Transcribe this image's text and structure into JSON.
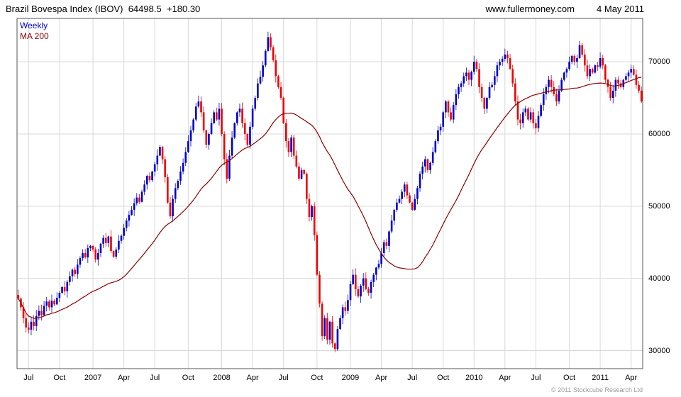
{
  "header": {
    "index_name": "Brazil Bovespa Index (IBOV)",
    "last_price": "64498.5",
    "change": "+180.30",
    "website": "www.fullermoney.com",
    "date": "4 May 2011"
  },
  "legend": {
    "series1": "Weekly",
    "series2": "MA 200"
  },
  "footer": {
    "copyright": "© 2011 Stockcube Research Ltd"
  },
  "colors": {
    "up_candle": "#0000cc",
    "down_candle": "#ee0000",
    "ma_line": "#8b0000",
    "grid": "#d8d8d8",
    "border": "#555555",
    "legend_weekly": "#0000cc",
    "legend_ma": "#8b0000"
  },
  "chart_data": {
    "type": "candlestick",
    "timeframe": "weekly",
    "title": "Brazil Bovespa Index (IBOV)",
    "xlabel": "",
    "ylabel": "",
    "grid": true,
    "legend_position": "top-left",
    "ylim": [
      27500,
      76000
    ],
    "yticks": [
      30000,
      40000,
      50000,
      60000,
      70000
    ],
    "xticks": [
      {
        "label": "Jul",
        "week": 4
      },
      {
        "label": "Oct",
        "week": 16
      },
      {
        "label": "2007",
        "week": 29
      },
      {
        "label": "Apr",
        "week": 41
      },
      {
        "label": "Jul",
        "week": 53
      },
      {
        "label": "Oct",
        "week": 66
      },
      {
        "label": "2008",
        "week": 79
      },
      {
        "label": "Apr",
        "week": 91
      },
      {
        "label": "Jul",
        "week": 103
      },
      {
        "label": "Oct",
        "week": 116
      },
      {
        "label": "2009",
        "week": 129
      },
      {
        "label": "Apr",
        "week": 141
      },
      {
        "label": "Jul",
        "week": 153
      },
      {
        "label": "Oct",
        "week": 165
      },
      {
        "label": "2010",
        "week": 177
      },
      {
        "label": "Apr",
        "week": 189
      },
      {
        "label": "Jul",
        "week": 201
      },
      {
        "label": "Oct",
        "week": 214
      },
      {
        "label": "2011",
        "week": 226
      },
      {
        "label": "Apr",
        "week": 238
      }
    ],
    "ma_period_label": "MA 200",
    "ma_window_weeks": 40,
    "start": "Jun 2006",
    "end": "May 2011",
    "weekly_closes": [
      37200,
      36000,
      34500,
      33200,
      32900,
      34000,
      33400,
      34800,
      35500,
      34900,
      36200,
      36800,
      36000,
      36900,
      36400,
      37300,
      38000,
      38800,
      38200,
      39500,
      40300,
      41200,
      40600,
      41900,
      42800,
      43500,
      42900,
      44200,
      44500,
      44000,
      42600,
      43500,
      44800,
      45600,
      44900,
      45800,
      43800,
      43000,
      44000,
      45200,
      45900,
      47000,
      48000,
      48800,
      49500,
      50400,
      51200,
      50600,
      52000,
      53000,
      54200,
      53600,
      54800,
      55800,
      57000,
      58200,
      56500,
      54000,
      50500,
      48600,
      51000,
      52500,
      53500,
      54800,
      56000,
      57500,
      59000,
      60500,
      62000,
      63800,
      64500,
      63000,
      60500,
      58500,
      60000,
      61500,
      63000,
      62000,
      63500,
      60000,
      56500,
      53800,
      57000,
      59500,
      61500,
      63000,
      63500,
      61500,
      60000,
      58500,
      61000,
      63500,
      65000,
      67000,
      67900,
      69500,
      71500,
      73400,
      72000,
      70200,
      68000,
      66500,
      65000,
      61500,
      59000,
      57500,
      59500,
      57000,
      55500,
      53800,
      55000,
      54500,
      51000,
      48500,
      50000,
      46000,
      40500,
      36500,
      32000,
      34500,
      31500,
      34000,
      31000,
      30200,
      33000,
      34500,
      36000,
      35500,
      37000,
      39200,
      40500,
      38500,
      37500,
      39000,
      40000,
      38500,
      38000,
      39500,
      40500,
      41500,
      42000,
      43500,
      45000,
      44500,
      46500,
      48000,
      49500,
      50500,
      51000,
      52000,
      53000,
      51500,
      50500,
      49500,
      51000,
      52500,
      54500,
      55500,
      56500,
      55000,
      56000,
      57500,
      59000,
      60500,
      61000,
      63000,
      64500,
      63000,
      62000,
      64000,
      65500,
      66500,
      67000,
      68000,
      68500,
      67500,
      68600,
      70000,
      69000,
      66500,
      65000,
      63500,
      65000,
      66500,
      66800,
      68000,
      69500,
      70000,
      70400,
      71000,
      70500,
      69000,
      67000,
      64500,
      62000,
      61500,
      63000,
      63500,
      62000,
      63000,
      61500,
      60800,
      62500,
      64000,
      65500,
      66500,
      67500,
      66500,
      65500,
      64500,
      66000,
      67500,
      68500,
      69000,
      70000,
      70800,
      70000,
      70500,
      72300,
      71000,
      69500,
      68000,
      69000,
      68500,
      69500,
      69300,
      70500,
      69500,
      67500,
      66500,
      65000,
      66000,
      67500,
      67000,
      66500,
      67500,
      68000,
      68500,
      69000,
      68200,
      66800,
      66000,
      64500
    ]
  }
}
